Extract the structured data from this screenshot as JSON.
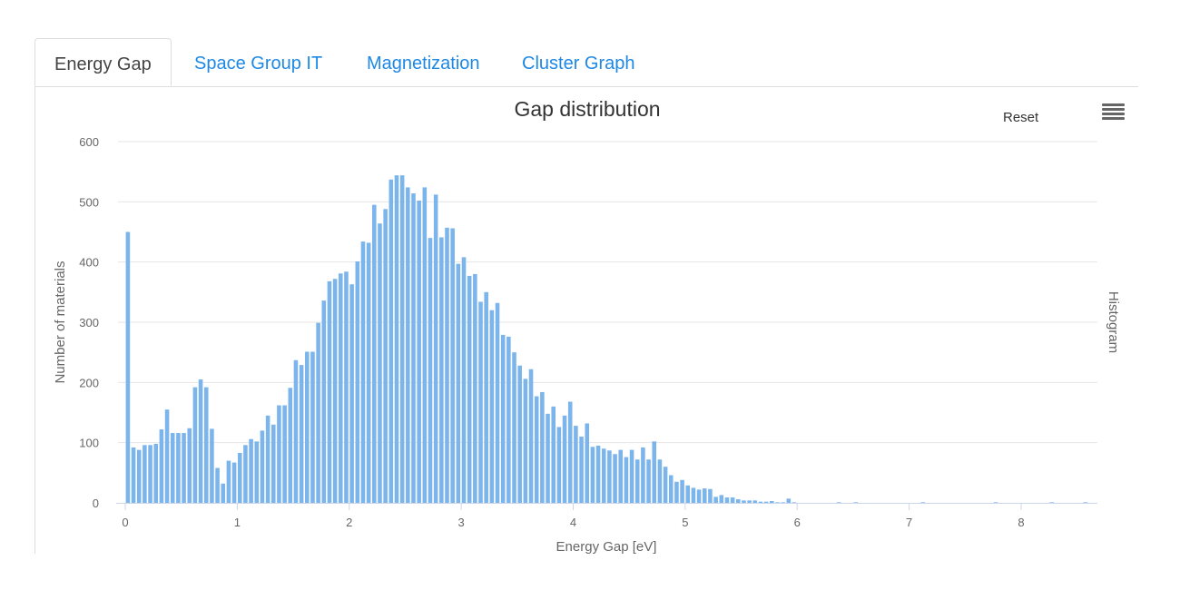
{
  "tabs": [
    {
      "label": "Energy Gap",
      "active": true
    },
    {
      "label": "Space Group IT",
      "active": false
    },
    {
      "label": "Magnetization",
      "active": false
    },
    {
      "label": "Cluster Graph",
      "active": false
    }
  ],
  "toolbar": {
    "reset_label": "Reset",
    "menu_icon": "hamburger-menu-icon"
  },
  "colors": {
    "bar": "#7cb5ec",
    "grid": "#e6e6e6",
    "axis": "#ccd6eb",
    "tab_link": "#1e88e5"
  },
  "chart_data": {
    "type": "bar",
    "title": "Gap distribution",
    "xlabel": "Energy Gap [eV]",
    "ylabel": "Number of materials",
    "series": [
      {
        "name": "Histogram"
      }
    ],
    "xlim": [
      0,
      8.7
    ],
    "ylim": [
      0,
      600
    ],
    "xticks": [
      "0",
      "1",
      "2",
      "3",
      "4",
      "5",
      "6",
      "7",
      "8"
    ],
    "yticks": [
      "0",
      "100",
      "200",
      "300",
      "400",
      "500",
      "600"
    ],
    "bin_width": 0.05,
    "values": [
      450,
      92,
      88,
      96,
      96,
      98,
      122,
      155,
      116,
      116,
      116,
      124,
      192,
      205,
      192,
      123,
      58,
      32,
      70,
      67,
      83,
      96,
      106,
      102,
      120,
      145,
      130,
      162,
      162,
      191,
      237,
      229,
      251,
      251,
      299,
      336,
      368,
      372,
      381,
      384,
      363,
      401,
      434,
      432,
      495,
      464,
      488,
      537,
      544,
      544,
      524,
      514,
      502,
      524,
      440,
      512,
      441,
      457,
      456,
      397,
      408,
      377,
      380,
      334,
      350,
      320,
      332,
      279,
      276,
      250,
      228,
      206,
      222,
      177,
      184,
      148,
      160,
      126,
      145,
      168,
      128,
      110,
      132,
      93,
      95,
      90,
      87,
      81,
      88,
      76,
      88,
      72,
      92,
      72,
      102,
      72,
      60,
      46,
      35,
      38,
      29,
      25,
      22,
      24,
      23,
      10,
      13,
      9,
      9,
      6,
      4,
      4,
      4,
      2,
      2,
      3,
      1,
      1,
      7,
      1,
      0,
      0,
      0,
      0,
      0,
      0,
      0,
      1,
      0,
      0,
      1,
      0,
      0,
      0,
      0,
      0,
      0,
      0,
      0,
      0,
      0,
      0,
      1,
      0,
      0,
      0,
      0,
      0,
      0,
      0,
      0,
      0,
      0,
      0,
      0,
      1,
      0,
      0,
      0,
      0,
      0,
      0,
      0,
      0,
      0,
      1,
      0,
      0,
      0,
      0,
      0,
      1,
      0,
      0,
      0,
      0
    ],
    "legend": "none",
    "grid": true
  }
}
